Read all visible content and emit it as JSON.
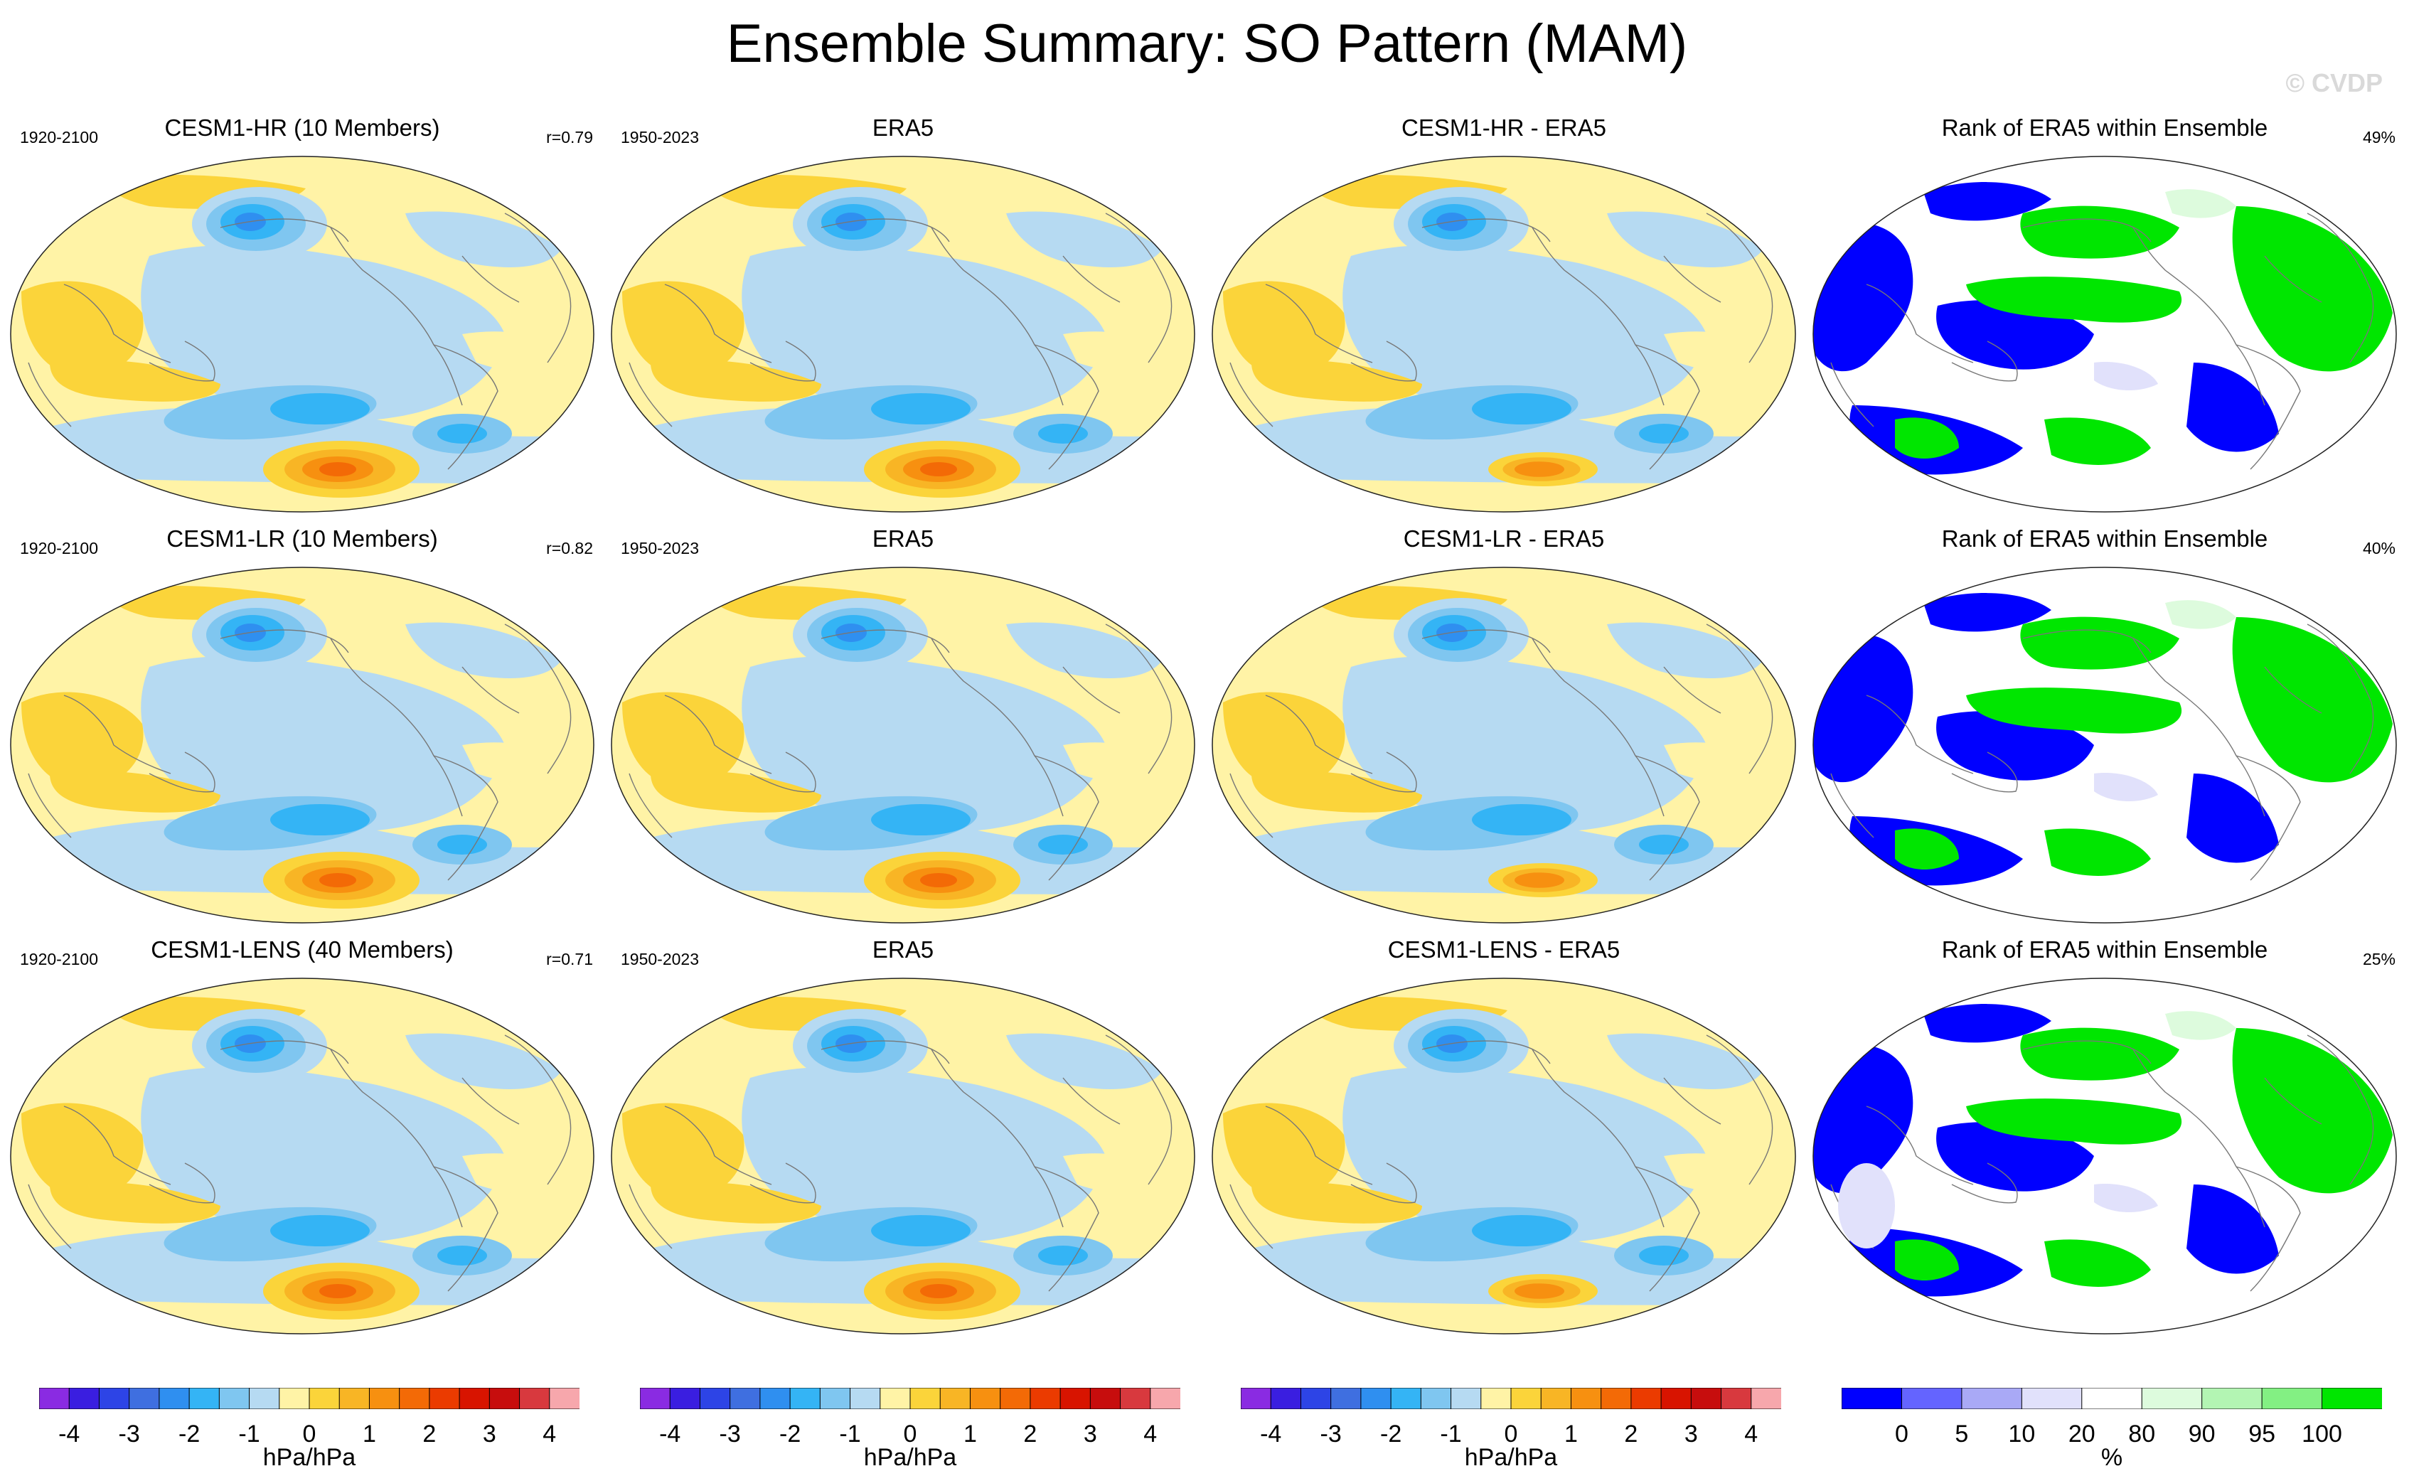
{
  "header": {
    "title": "Ensemble Summary: SO Pattern (MAM)",
    "watermark": "© CVDP"
  },
  "rows": [
    {
      "model": {
        "title": "CESM1-HR (10 Members)",
        "period": "1920-2100",
        "corr": "r=0.79"
      },
      "obs": {
        "title": "ERA5",
        "period": "1950-2023"
      },
      "diff": {
        "title": "CESM1-HR - ERA5"
      },
      "rank": {
        "title": "Rank of ERA5 within Ensemble",
        "pct": "49%"
      }
    },
    {
      "model": {
        "title": "CESM1-LR (10 Members)",
        "period": "1920-2100",
        "corr": "r=0.82"
      },
      "obs": {
        "title": "ERA5",
        "period": "1950-2023"
      },
      "diff": {
        "title": "CESM1-LR - ERA5"
      },
      "rank": {
        "title": "Rank of ERA5 within Ensemble",
        "pct": "40%"
      }
    },
    {
      "model": {
        "title": "CESM1-LENS (40 Members)",
        "period": "1920-2100",
        "corr": "r=0.71"
      },
      "obs": {
        "title": "ERA5",
        "period": "1950-2023"
      },
      "diff": {
        "title": "CESM1-LENS - ERA5"
      },
      "rank": {
        "title": "Rank of ERA5 within Ensemble",
        "pct": "25%"
      }
    }
  ],
  "chart_data": {
    "type": "heatmap",
    "title": "Ensemble Summary: SO Pattern (MAM)",
    "projection": "global ellipse (Robinson-like), Pacific-centered",
    "regression_colorbar": {
      "unit": "hPa/hPa",
      "ticks": [
        "-4",
        "-3",
        "-2",
        "-1",
        "0",
        "1",
        "2",
        "3",
        "4"
      ],
      "tick_values": [
        -4,
        -3,
        -2,
        -1,
        0,
        1,
        2,
        3,
        4
      ],
      "colors": [
        "#8a2be2",
        "#3a1ee0",
        "#2d44e6",
        "#3f6fe0",
        "#2f8ff0",
        "#34b4f5",
        "#7fc6f0",
        "#b6daf2",
        "#fff3a6",
        "#fbd43a",
        "#f8b525",
        "#f79010",
        "#f36a06",
        "#eb3b00",
        "#d81400",
        "#c70d0d",
        "#d8393e",
        "#f7a7ac"
      ]
    },
    "rank_colorbar": {
      "unit": "%",
      "ticks": [
        "0",
        "5",
        "10",
        "20",
        "80",
        "90",
        "95",
        "100"
      ],
      "tick_values": [
        0,
        5,
        10,
        20,
        80,
        90,
        95,
        100
      ],
      "colors": [
        "#0000ff",
        "#6464ff",
        "#a9a9f6",
        "#e1e1fb",
        "#ffffff",
        "#ddfbdd",
        "#b3f5b3",
        "#83f083",
        "#00e600"
      ]
    },
    "panels": [
      "CESM1-HR (10 Members)",
      "ERA5",
      "CESM1-HR - ERA5",
      "Rank of ERA5 within Ensemble",
      "CESM1-LR (10 Members)",
      "ERA5",
      "CESM1-LR - ERA5",
      "Rank of ERA5 within Ensemble",
      "CESM1-LENS (40 Members)",
      "ERA5",
      "CESM1-LENS - ERA5",
      "Rank of ERA5 within Ensemble"
    ],
    "rank_summary_pct": [
      49,
      40,
      25
    ],
    "pattern_correlation": [
      0.79,
      0.82,
      0.71
    ]
  }
}
